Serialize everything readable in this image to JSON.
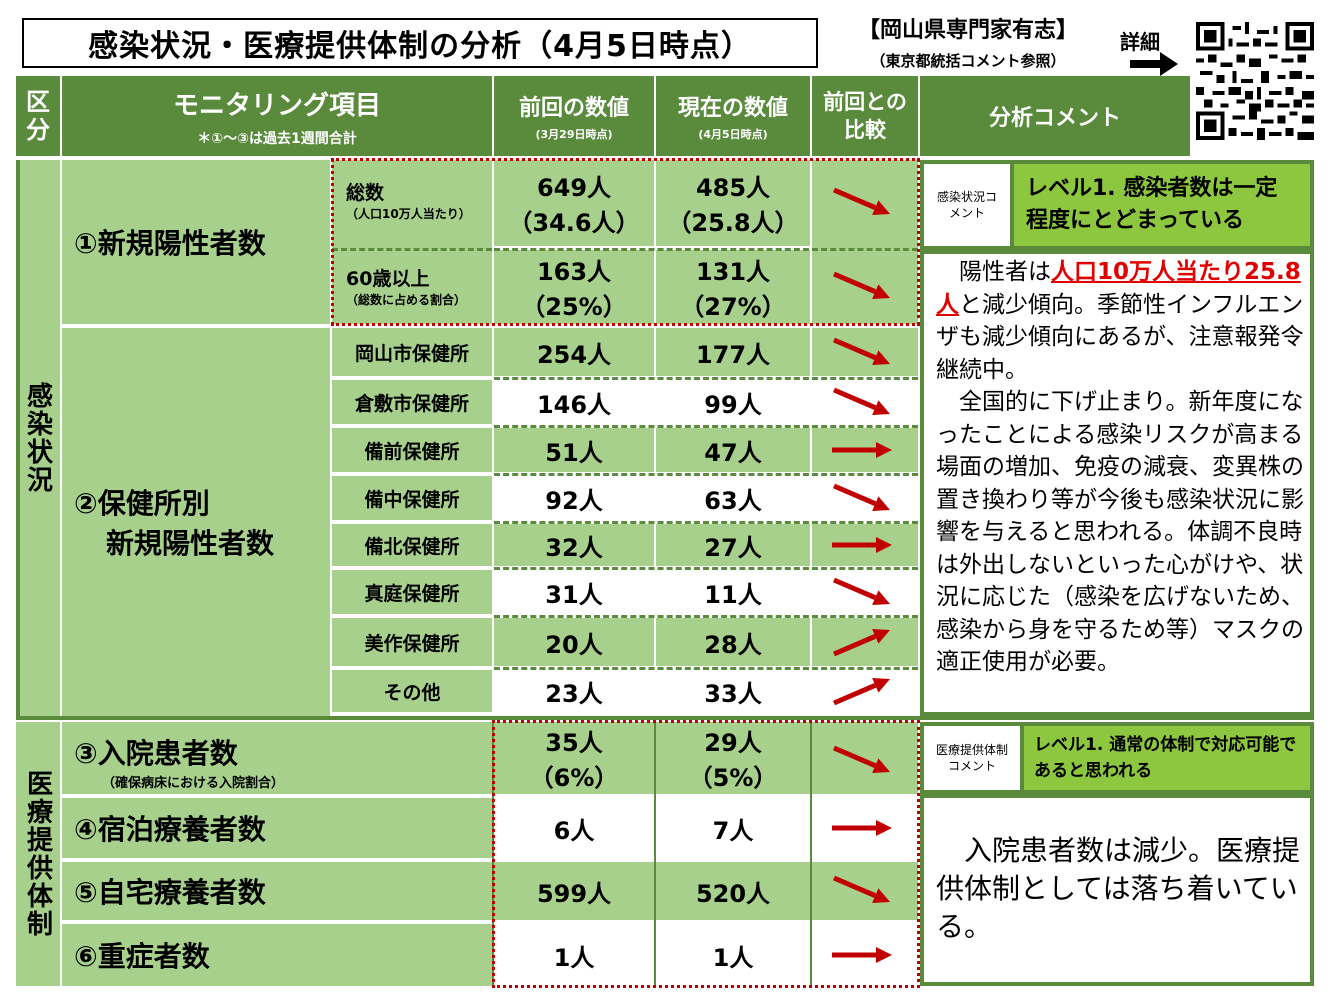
{
  "title": "感染状況・医療提供体制の分析（4月5日時点）",
  "org": "【岡山県専門家有志】",
  "org_sub": "（東京都統括コメント参照）",
  "detail_label": "詳細",
  "header": {
    "kubun": "区分",
    "monitoring": "モニタリング項目",
    "monitoring_note": "＊①〜③は過去1週間合計",
    "prev": "前回の数値",
    "prev_date": "(3月29日時点)",
    "curr": "現在の数値",
    "curr_date": "(4月5日時点)",
    "compare": "前回との比較",
    "comment": "分析コメント"
  },
  "sections": {
    "infection": "感染状況",
    "medical": "医療提供体制"
  },
  "rows": {
    "new_positive": {
      "label": "①新規陽性者数",
      "total": {
        "label": "総数",
        "note": "（人口10万人当たり）",
        "prev": "649人",
        "prev_sub": "（34.6人）",
        "curr": "485人",
        "curr_sub": "（25.8人）",
        "trend": "down"
      },
      "over60": {
        "label": "60歳以上",
        "note": "（総数に占める割合）",
        "prev": "163人",
        "prev_sub": "（25%）",
        "curr": "131人",
        "curr_sub": "（27%）",
        "trend": "down"
      }
    },
    "health_center": {
      "label1": "②保健所別",
      "label2": "新規陽性者数",
      "items": [
        {
          "name": "岡山市保健所",
          "prev": "254人",
          "curr": "177人",
          "trend": "down"
        },
        {
          "name": "倉敷市保健所",
          "prev": "146人",
          "curr": "99人",
          "trend": "down"
        },
        {
          "name": "備前保健所",
          "prev": "51人",
          "curr": "47人",
          "trend": "flat"
        },
        {
          "name": "備中保健所",
          "prev": "92人",
          "curr": "63人",
          "trend": "down"
        },
        {
          "name": "備北保健所",
          "prev": "32人",
          "curr": "27人",
          "trend": "flat"
        },
        {
          "name": "真庭保健所",
          "prev": "31人",
          "curr": "11人",
          "trend": "down"
        },
        {
          "name": "美作保健所",
          "prev": "20人",
          "curr": "28人",
          "trend": "up"
        },
        {
          "name": "その他",
          "prev": "23人",
          "curr": "33人",
          "trend": "up"
        }
      ]
    },
    "hospitalized": {
      "label": "③入院患者数",
      "note": "（確保病床における入院割合）",
      "prev": "35人",
      "prev_sub": "（6%）",
      "curr": "29人",
      "curr_sub": "（5%）",
      "trend": "down"
    },
    "lodging": {
      "label": "④宿泊療養者数",
      "prev": "6人",
      "curr": "7人",
      "trend": "flat"
    },
    "home": {
      "label": "⑤自宅療養者数",
      "prev": "599人",
      "curr": "520人",
      "trend": "down"
    },
    "severe": {
      "label": "⑥重症者数",
      "prev": "1人",
      "curr": "1人",
      "trend": "flat"
    }
  },
  "infection_comment": {
    "tag": "感染状況コメント",
    "level": "レベル1. 感染者数は一定程度にとどまっている",
    "text_pre": "　陽性者は",
    "highlight": "人口10万人当たり25.8人",
    "text_post": "と減少傾向。季節性インフルエンザも減少傾向にあるが、注意報発令継続中。\n　全国的に下げ止まり。新年度になったことによる感染リスクが高まる場面の増加、免疫の減衰、変異株の置き換わり等が今後も感染状況に影響を与えると思われる。体調不良時は外出しないといった心がけや、状況に応じた（感染を広げないため、感染から身を守るため等）マスクの適正使用が必要。"
  },
  "medical_comment": {
    "tag": "医療提供体制コメント",
    "level": "レベル1. 通常の体制で対応可能であると思われる",
    "text": "入院患者数は減少。医療提供体制としては落ち着いている。"
  },
  "colors": {
    "dark_green": "#5a8a3c",
    "light_green": "#a8d08d",
    "accent_green": "#8dc63f",
    "red": "#c00000"
  }
}
